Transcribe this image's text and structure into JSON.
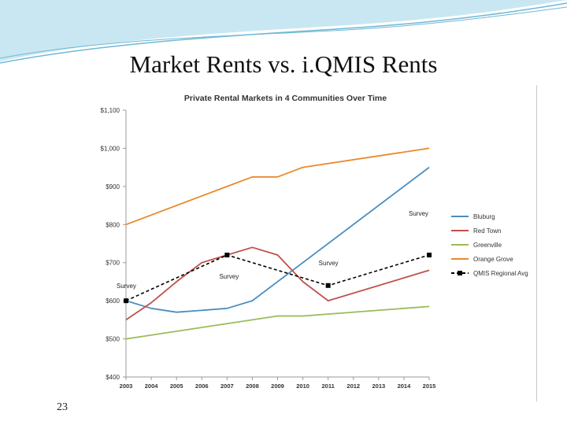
{
  "slide": {
    "title": "Market Rents vs. i.QMIS Rents",
    "page_number": "23"
  },
  "colors": {
    "decor_light": "#c9e7f2",
    "decor_dark": "#6fb8d6"
  },
  "chart_data": {
    "type": "line",
    "title": "Private Rental Markets in 4 Communities Over Time",
    "xlabel": "",
    "ylabel": "",
    "x": [
      2003,
      2004,
      2005,
      2006,
      2007,
      2008,
      2009,
      2010,
      2011,
      2012,
      2013,
      2014,
      2015
    ],
    "ylim": [
      400,
      1100
    ],
    "yticks": [
      400,
      500,
      600,
      700,
      800,
      900,
      1000,
      1100
    ],
    "ytick_labels": [
      "$400",
      "$500",
      "$600",
      "$700",
      "$800",
      "$900",
      "$1,000",
      "$1,100"
    ],
    "grid": false,
    "legend_position": "right",
    "series": [
      {
        "name": "Bluburg",
        "color": "#4a8ec2",
        "dashed": false,
        "points": [
          [
            2003,
            600
          ],
          [
            2004,
            580
          ],
          [
            2005,
            570
          ],
          [
            2006,
            575
          ],
          [
            2007,
            580
          ],
          [
            2008,
            600
          ],
          [
            2015,
            950
          ]
        ]
      },
      {
        "name": "Red Town",
        "color": "#c0504d",
        "dashed": false,
        "points": [
          [
            2003,
            550
          ],
          [
            2004,
            595
          ],
          [
            2005,
            650
          ],
          [
            2006,
            700
          ],
          [
            2007,
            720
          ],
          [
            2008,
            740
          ],
          [
            2009,
            720
          ],
          [
            2010,
            650
          ],
          [
            2011,
            600
          ],
          [
            2015,
            680
          ]
        ]
      },
      {
        "name": "Greenville",
        "color": "#9bbb59",
        "dashed": false,
        "points": [
          [
            2003,
            500
          ],
          [
            2009,
            560
          ],
          [
            2010,
            560
          ],
          [
            2015,
            585
          ]
        ]
      },
      {
        "name": "Orange Grove",
        "color": "#e9892d",
        "dashed": false,
        "points": [
          [
            2003,
            800
          ],
          [
            2007,
            900
          ],
          [
            2008,
            925
          ],
          [
            2009,
            925
          ],
          [
            2010,
            950
          ],
          [
            2015,
            1000
          ]
        ]
      },
      {
        "name": "QMIS Regional Avg",
        "color": "#000000",
        "dashed": true,
        "marker": "square",
        "points": [
          [
            2003,
            600
          ],
          [
            2007,
            720
          ],
          [
            2011,
            640
          ],
          [
            2015,
            720
          ]
        ]
      }
    ],
    "annotations": [
      {
        "text": "Survey",
        "x": 2003,
        "y": 600
      },
      {
        "text": "Survey",
        "x": 2007,
        "y": 720
      },
      {
        "text": "Survey",
        "x": 2011,
        "y": 640
      },
      {
        "text": "Survey",
        "x": 2015,
        "y": 720
      }
    ]
  }
}
